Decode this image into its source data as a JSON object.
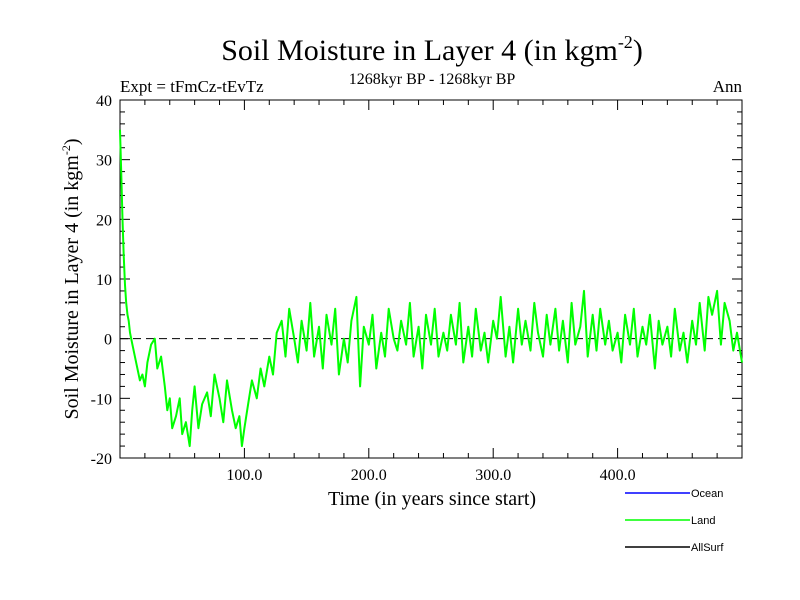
{
  "chart_data": {
    "type": "line",
    "title": "Soil Moisture in Layer 4 (in kgm",
    "title_sup": "-2",
    "title_end": ")",
    "subtitle": "1268kyr BP - 1268kyr BP",
    "expt_label": "Expt = tFmCz-tEvTz",
    "season_label": "Ann",
    "xlabel": "Time (in years since start)",
    "ylabel": "Soil Moisture in Layer 4 (in kgm",
    "ylabel_sup": "-2",
    "ylabel_end": ")",
    "xlim": [
      0,
      500
    ],
    "ylim": [
      -20,
      40
    ],
    "x_ticks": [
      100,
      200,
      300,
      400
    ],
    "x_tick_labels": [
      "100.0",
      "200.0",
      "300.0",
      "400.0"
    ],
    "y_ticks": [
      -20,
      -10,
      0,
      10,
      20,
      30,
      40
    ],
    "y_tick_labels": [
      "-20",
      "-10",
      "0",
      "10",
      "20",
      "30",
      "40"
    ],
    "reference_line": 0,
    "legend": [
      {
        "name": "Ocean",
        "color": "#0000ff"
      },
      {
        "name": "Land",
        "color": "#00ff00"
      },
      {
        "name": "AllSurf",
        "color": "#000000"
      }
    ],
    "series": [
      {
        "name": "Land",
        "color": "#00ff00",
        "x": [
          0,
          1,
          2,
          3,
          4,
          5,
          6,
          7,
          8,
          10,
          12,
          14,
          16,
          18,
          20,
          22,
          25,
          28,
          30,
          33,
          36,
          38,
          40,
          42,
          45,
          48,
          50,
          53,
          56,
          58,
          60,
          63,
          66,
          70,
          73,
          76,
          80,
          83,
          86,
          90,
          93,
          96,
          98,
          100,
          103,
          106,
          110,
          113,
          116,
          120,
          123,
          126,
          130,
          133,
          136,
          140,
          143,
          146,
          150,
          153,
          156,
          160,
          163,
          166,
          170,
          173,
          176,
          180,
          183,
          186,
          190,
          193,
          196,
          200,
          203,
          206,
          210,
          213,
          216,
          220,
          223,
          226,
          230,
          233,
          236,
          240,
          243,
          246,
          250,
          253,
          256,
          260,
          263,
          266,
          270,
          273,
          276,
          280,
          283,
          286,
          290,
          293,
          296,
          300,
          303,
          306,
          310,
          313,
          316,
          320,
          323,
          326,
          330,
          333,
          336,
          340,
          343,
          346,
          350,
          353,
          356,
          360,
          363,
          366,
          370,
          373,
          376,
          380,
          383,
          386,
          390,
          393,
          396,
          400,
          403,
          406,
          410,
          413,
          416,
          420,
          423,
          426,
          430,
          433,
          436,
          440,
          443,
          446,
          450,
          453,
          456,
          460,
          463,
          466,
          470,
          473,
          476,
          480,
          483,
          486,
          490,
          493,
          496,
          500
        ],
        "values": [
          35,
          28,
          20,
          14,
          9,
          6,
          4,
          3,
          1,
          -1,
          -3,
          -5,
          -7,
          -6,
          -8,
          -4,
          -1,
          0,
          -5,
          -3,
          -8,
          -12,
          -10,
          -15,
          -13,
          -10,
          -16,
          -14,
          -18,
          -12,
          -8,
          -15,
          -11,
          -9,
          -13,
          -6,
          -10,
          -14,
          -7,
          -12,
          -15,
          -13,
          -18,
          -15,
          -11,
          -7,
          -10,
          -5,
          -8,
          -3,
          -6,
          1,
          3,
          -3,
          5,
          0,
          -4,
          3,
          -2,
          6,
          -3,
          2,
          -5,
          4,
          -1,
          5,
          -6,
          0,
          -4,
          3,
          7,
          -8,
          2,
          -1,
          4,
          -5,
          1,
          -3,
          5,
          0,
          -2,
          3,
          -1,
          6,
          -3,
          2,
          -5,
          4,
          -1,
          5,
          -3,
          1,
          -2,
          4,
          -1,
          6,
          -4,
          2,
          -3,
          5,
          -2,
          1,
          -4,
          3,
          0,
          7,
          -3,
          2,
          -4,
          5,
          -1,
          3,
          -2,
          6,
          1,
          -3,
          4,
          -1,
          5,
          -2,
          3,
          -4,
          6,
          -1,
          2,
          8,
          -3,
          4,
          -2,
          5,
          -1,
          3,
          -2,
          1,
          -4,
          4,
          -1,
          5,
          -3,
          2,
          -1,
          4,
          -5,
          3,
          -1,
          2,
          -3,
          5,
          -2,
          1,
          -4,
          3,
          -1,
          6,
          -2,
          7,
          4,
          8,
          -1,
          6,
          3,
          -2,
          1,
          -4
        ]
      }
    ]
  }
}
